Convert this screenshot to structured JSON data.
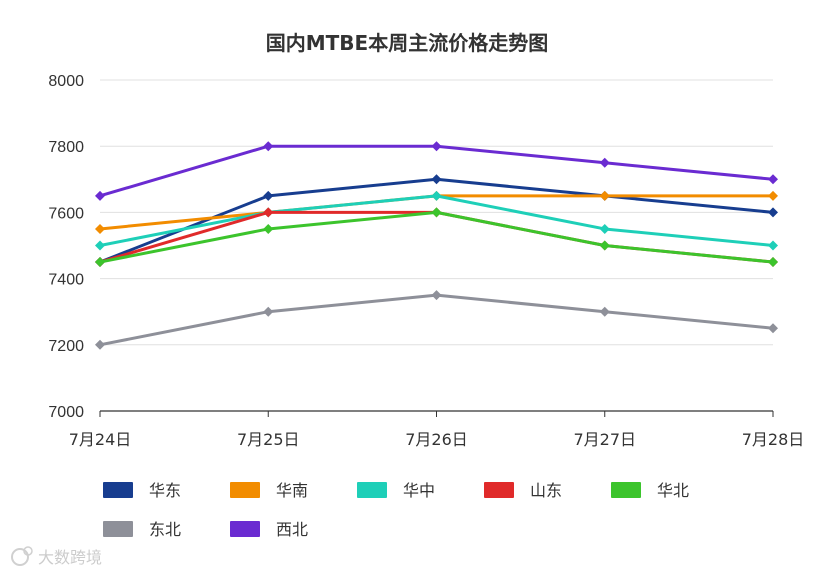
{
  "chart_data": {
    "type": "line",
    "title": "国内MTBE本周主流价格走势图",
    "xlabel": "",
    "ylabel": "",
    "categories": [
      "7月24日",
      "7月25日",
      "7月26日",
      "7月27日",
      "7月28日"
    ],
    "ylim": [
      7000,
      8000
    ],
    "yticks": [
      7000,
      7200,
      7400,
      7600,
      7800,
      8000
    ],
    "grid": true,
    "legend_position": "bottom",
    "series": [
      {
        "name": "华东",
        "color": "#173d8f",
        "values": [
          7450,
          7650,
          7700,
          7650,
          7600
        ]
      },
      {
        "name": "华南",
        "color": "#f28c00",
        "values": [
          7550,
          7600,
          7650,
          7650,
          7650
        ]
      },
      {
        "name": "华中",
        "color": "#1ecfb8",
        "values": [
          7500,
          7600,
          7650,
          7550,
          7500
        ]
      },
      {
        "name": "山东",
        "color": "#e02a2a",
        "values": [
          7450,
          7600,
          7600,
          7500,
          7450
        ]
      },
      {
        "name": "华北",
        "color": "#3cc42c",
        "values": [
          7450,
          7550,
          7600,
          7500,
          7450
        ]
      },
      {
        "name": "东北",
        "color": "#8e9099",
        "values": [
          7200,
          7300,
          7350,
          7300,
          7250
        ]
      },
      {
        "name": "西北",
        "color": "#6a2bd1",
        "values": [
          7650,
          7800,
          7800,
          7750,
          7700
        ]
      }
    ]
  },
  "watermark": {
    "text": "大数跨境",
    "icon": "brand-logo-icon"
  }
}
